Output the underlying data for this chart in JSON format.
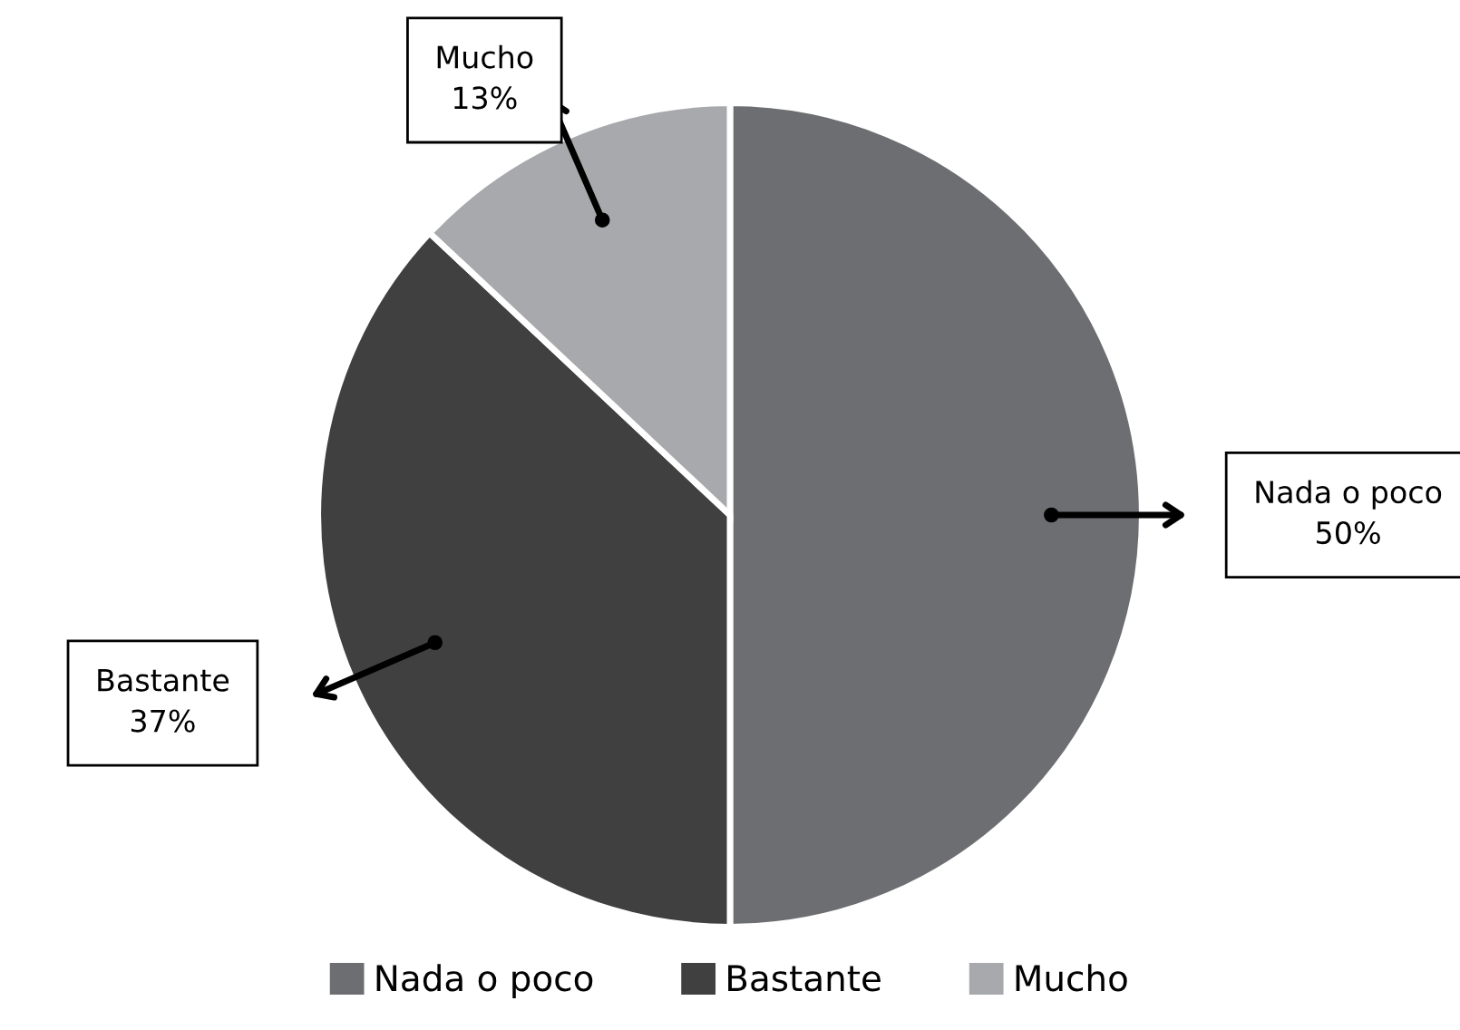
{
  "chart_data": {
    "type": "pie",
    "categories": [
      "Nada o poco",
      "Bastante",
      "Mucho"
    ],
    "values": [
      50,
      37,
      13
    ],
    "colors": [
      "#6d6e71",
      "#404041",
      "#a7a9ac"
    ],
    "value_labels": [
      "50%",
      "37%",
      "13%"
    ],
    "legend": "bottom"
  }
}
